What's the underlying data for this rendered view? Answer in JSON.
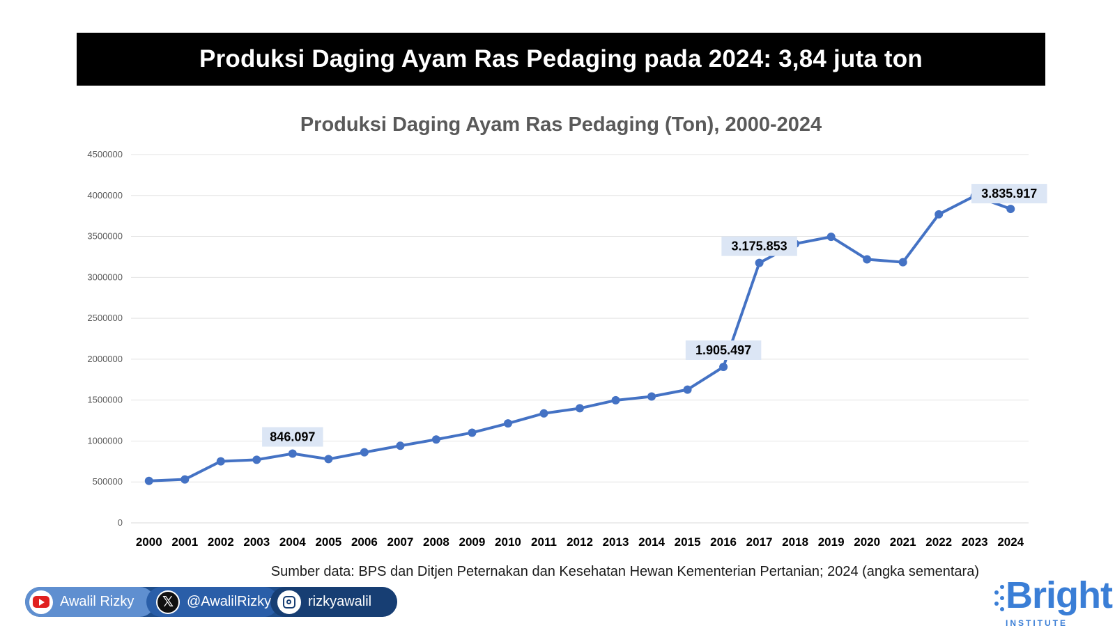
{
  "header": {
    "title": "Produksi Daging Ayam Ras Pedaging pada 2024: 3,84 juta ton"
  },
  "chart_data": {
    "type": "line",
    "title": "Produksi Daging Ayam Ras Pedaging (Ton), 2000-2024",
    "xlabel": "",
    "ylabel": "",
    "ylim": [
      0,
      4500000
    ],
    "yticks": [
      "0",
      "500000",
      "1000000",
      "1500000",
      "2000000",
      "2500000",
      "3000000",
      "3500000",
      "4000000",
      "4500000"
    ],
    "grid": true,
    "legend": "none",
    "categories": [
      "2000",
      "2001",
      "2002",
      "2003",
      "2004",
      "2005",
      "2006",
      "2007",
      "2008",
      "2009",
      "2010",
      "2011",
      "2012",
      "2013",
      "2014",
      "2015",
      "2016",
      "2017",
      "2018",
      "2019",
      "2020",
      "2021",
      "2022",
      "2023",
      "2024"
    ],
    "series": [
      {
        "values": [
          513000,
          531000,
          752000,
          771000,
          846097,
          779000,
          862000,
          942000,
          1019000,
          1102000,
          1215000,
          1338000,
          1400000,
          1498000,
          1544000,
          1628000,
          1905497,
          3175853,
          3410000,
          3495000,
          3220000,
          3185000,
          3770000,
          3995000,
          3835917
        ],
        "color": "#4472c4"
      }
    ],
    "data_labels": [
      {
        "year": "2004",
        "text": "846.097"
      },
      {
        "year": "2016",
        "text": "1.905.497"
      },
      {
        "year": "2017",
        "text": "3.175.853"
      },
      {
        "year": "2024",
        "text": "3.835.917"
      }
    ]
  },
  "source": "Sumber data: BPS dan Ditjen Peternakan dan Kesehatan Hewan Kementerian Pertanian; 2024 (angka sementara)",
  "socials": {
    "youtube": "Awalil Rizky",
    "x_handle": "@AwalilRizky",
    "instagram": "rizkyawalil",
    "icons": [
      "youtube-icon",
      "x-icon",
      "instagram-icon"
    ]
  },
  "logo": {
    "word": "Bright",
    "sub": "INSTITUTE"
  },
  "colors": {
    "line": "#4472c4",
    "label_bg": "#dce6f5",
    "banner": "#000000",
    "logo": "#3a7ed6"
  }
}
